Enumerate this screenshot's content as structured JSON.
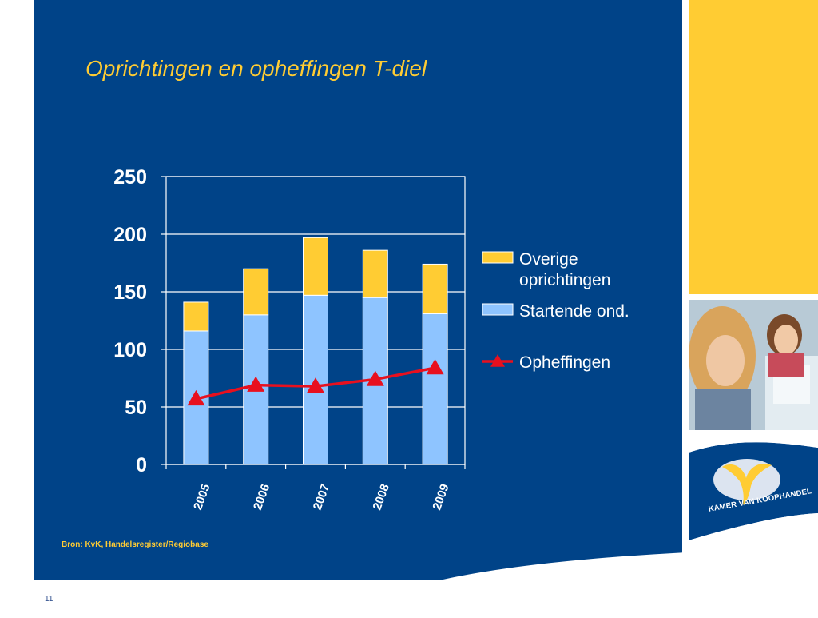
{
  "slide": {
    "title": "Oprichtingen en opheffingen T-diel",
    "source": "Bron: KvK, Handelsregister/Regiobase",
    "page_number": "11",
    "logo_text": "KAMER VAN KOOPHANDEL"
  },
  "colors": {
    "background": "#004388",
    "accent": "#ffcc33",
    "startende": "#8ec4ff",
    "overige": "#ffcc33",
    "opheffingen": "#e8101e",
    "grid": "#ffffff"
  },
  "icons": {
    "logo": "kvk-logo-icon",
    "photo": "people-photo"
  },
  "chart_data": {
    "type": "bar",
    "stacked": true,
    "categories": [
      "2005",
      "2006",
      "2007",
      "2008",
      "2009"
    ],
    "series": [
      {
        "name": "Startende ond.",
        "kind": "bar",
        "values": [
          116,
          130,
          147,
          145,
          131
        ]
      },
      {
        "name": "Overige oprichtingen",
        "kind": "bar",
        "values": [
          25,
          40,
          50,
          41,
          43
        ]
      },
      {
        "name": "Opheffingen",
        "kind": "line",
        "marker": "triangle",
        "values": [
          57,
          69,
          68,
          74,
          84
        ]
      }
    ],
    "ylim": [
      0,
      250
    ],
    "yticks": [
      0,
      50,
      100,
      150,
      200,
      250
    ],
    "grid": true,
    "legend_position": "right",
    "xtick_rotation": "vertical",
    "legend": [
      "Overige oprichtingen",
      "Startende ond.",
      "Opheffingen"
    ]
  }
}
